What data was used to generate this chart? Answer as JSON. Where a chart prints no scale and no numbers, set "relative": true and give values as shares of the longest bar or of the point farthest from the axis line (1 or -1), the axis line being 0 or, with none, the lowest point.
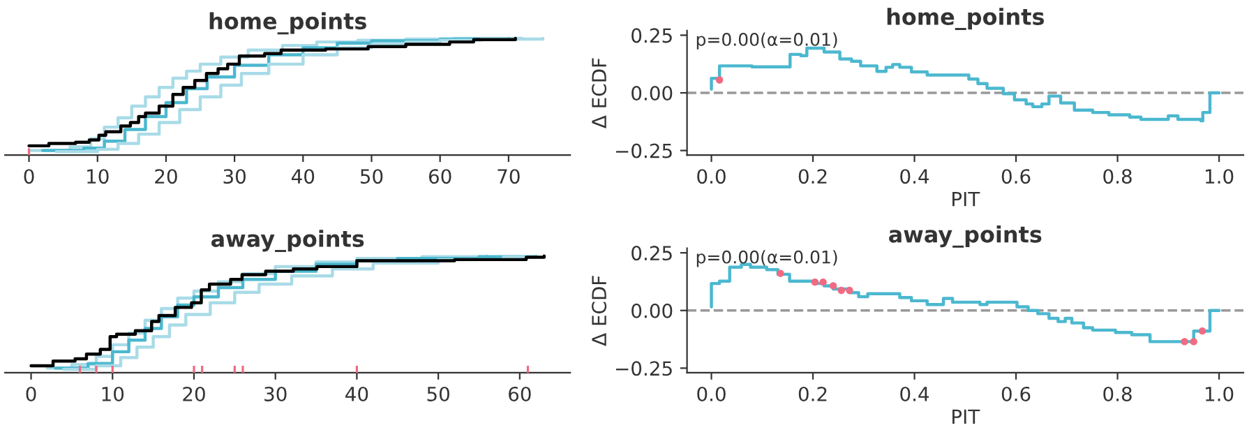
{
  "chart_data": [
    {
      "type": "step",
      "title": "home_points",
      "relative": true,
      "xlim": [
        -3.5,
        79
      ],
      "xticks": [
        0,
        10,
        20,
        30,
        40,
        50,
        60,
        70
      ],
      "tick_labels": "x",
      "series": [
        {
          "color": "#a8dbe7",
          "x": [
            0,
            6,
            9,
            11,
            13,
            15,
            17,
            19,
            21,
            23,
            25,
            28,
            32,
            37,
            42,
            48,
            55,
            62,
            72
          ],
          "values": [
            0.04,
            0.07,
            0.14,
            0.24,
            0.32,
            0.42,
            0.5,
            0.58,
            0.66,
            0.72,
            0.78,
            0.84,
            0.9,
            0.94,
            0.97,
            0.985,
            0.995,
            1.0,
            1.0
          ]
        },
        {
          "color": "#4bb8cf",
          "x": [
            2,
            8,
            11,
            14,
            17,
            20,
            23,
            26,
            30,
            35,
            40,
            45,
            50,
            60,
            70
          ],
          "values": [
            0.04,
            0.06,
            0.12,
            0.22,
            0.33,
            0.45,
            0.57,
            0.67,
            0.77,
            0.86,
            0.92,
            0.96,
            0.98,
            0.995,
            1.0
          ]
        },
        {
          "color": "#a8dbe7",
          "x": [
            4,
            10,
            13,
            16,
            19,
            22,
            25,
            28,
            31,
            35,
            40,
            45,
            50,
            55,
            60,
            66,
            75
          ],
          "values": [
            0.03,
            0.05,
            0.1,
            0.18,
            0.28,
            0.39,
            0.5,
            0.6,
            0.7,
            0.78,
            0.86,
            0.92,
            0.95,
            0.97,
            0.985,
            0.995,
            1.0
          ]
        },
        {
          "color": "#000000",
          "x": [
            0,
            2.9,
            6.8,
            8.8,
            10.2,
            11.2,
            13.4,
            14.8,
            16,
            17,
            19,
            21,
            22.5,
            24.2,
            25.9,
            27.6,
            29,
            30.7,
            34.4,
            36.8,
            43.3,
            49.5,
            55,
            61.4,
            64.9,
            71
          ],
          "values": [
            0.08,
            0.1,
            0.11,
            0.13,
            0.17,
            0.2,
            0.25,
            0.28,
            0.33,
            0.36,
            0.42,
            0.52,
            0.58,
            0.64,
            0.7,
            0.74,
            0.78,
            0.85,
            0.87,
            0.9,
            0.91,
            0.93,
            0.95,
            0.97,
            0.99,
            1.0
          ]
        },
        {
          "type": "bar",
          "color": "#f06b82",
          "x": [
            0
          ],
          "values": [
            0.06
          ]
        }
      ]
    },
    {
      "type": "step",
      "title": "home_points",
      "xlabel": "PIT",
      "ylabel": "Δ ECDF",
      "xlim": [
        -0.048,
        1.048
      ],
      "ylim": [
        -0.27,
        0.27
      ],
      "xticks": [
        {
          "value": 0,
          "label": "0.0"
        },
        {
          "value": 0.2,
          "label": "0.2"
        },
        {
          "value": 0.4,
          "label": "0.4"
        },
        {
          "value": 0.6,
          "label": "0.6"
        },
        {
          "value": 0.8,
          "label": "0.8"
        },
        {
          "value": 1,
          "label": "1.0"
        }
      ],
      "yticks": [
        {
          "value": -0.25,
          "label": "−0.25"
        },
        {
          "value": 0,
          "label": "0.00"
        },
        {
          "value": 0.25,
          "label": "0.25"
        }
      ],
      "ref_lines": [
        {
          "axis": "y",
          "value": 0,
          "color": "#999999",
          "line_style": "dashed"
        }
      ],
      "annotations": [
        "p=0.00(α=0.01)"
      ],
      "series": [
        {
          "color": "#4bb8cf",
          "x": [
            0,
            0,
            0.016,
            0.08,
            0.155,
            0.176,
            0.188,
            0.222,
            0.253,
            0.276,
            0.294,
            0.326,
            0.344,
            0.357,
            0.371,
            0.394,
            0.425,
            0.507,
            0.525,
            0.543,
            0.575,
            0.597,
            0.62,
            0.633,
            0.651,
            0.665,
            0.688,
            0.715,
            0.751,
            0.783,
            0.824,
            0.846,
            0.9,
            0.919,
            0.964,
            0.968,
            0.982,
            1.0
          ],
          "values": [
            0.016,
            0.063,
            0.117,
            0.113,
            0.167,
            0.161,
            0.194,
            0.177,
            0.147,
            0.137,
            0.117,
            0.093,
            0.111,
            0.123,
            0.111,
            0.091,
            0.077,
            0.06,
            0.04,
            0.02,
            -0.004,
            -0.03,
            -0.048,
            -0.06,
            -0.048,
            -0.014,
            -0.044,
            -0.075,
            -0.085,
            -0.095,
            -0.105,
            -0.115,
            -0.1,
            -0.115,
            -0.121,
            -0.085,
            0,
            0
          ]
        },
        {
          "type": "scatter",
          "marker": "circle",
          "color": "#f06b82",
          "x": [
            0.016
          ],
          "values": [
            0.056
          ]
        }
      ]
    },
    {
      "type": "step",
      "title": "away_points",
      "relative": true,
      "xlim": [
        -3.2,
        66.2
      ],
      "xticks": [
        0,
        10,
        20,
        30,
        40,
        50,
        60
      ],
      "tick_labels": "x",
      "series": [
        {
          "color": "#a8dbe7",
          "x": [
            2,
            5,
            8,
            10,
            12,
            14,
            16,
            18,
            20,
            23,
            26,
            30,
            35,
            40,
            48,
            56
          ],
          "values": [
            0.04,
            0.07,
            0.14,
            0.24,
            0.34,
            0.45,
            0.55,
            0.64,
            0.7,
            0.78,
            0.85,
            0.91,
            0.95,
            0.98,
            0.995,
            1.0
          ]
        },
        {
          "color": "#4bb8cf",
          "x": [
            3,
            7,
            10,
            12,
            14,
            16,
            18,
            20,
            23,
            26,
            30,
            35,
            40,
            45,
            55,
            62
          ],
          "values": [
            0.04,
            0.08,
            0.18,
            0.28,
            0.38,
            0.48,
            0.58,
            0.65,
            0.73,
            0.8,
            0.87,
            0.93,
            0.96,
            0.98,
            0.995,
            1.0
          ]
        },
        {
          "color": "#a8dbe7",
          "x": [
            4,
            8,
            11,
            13,
            15,
            17,
            19,
            22,
            25,
            28,
            32,
            37,
            42,
            50,
            58,
            62
          ],
          "values": [
            0.03,
            0.06,
            0.13,
            0.22,
            0.31,
            0.41,
            0.5,
            0.6,
            0.69,
            0.76,
            0.83,
            0.89,
            0.94,
            0.97,
            0.99,
            1.0
          ]
        },
        {
          "color": "#000000",
          "x": [
            0,
            2.7,
            5.4,
            6.8,
            8.5,
            9.7,
            10.5,
            12.8,
            14.8,
            15.7,
            17.7,
            19.7,
            20.9,
            21.9,
            24.5,
            25.9,
            28.8,
            32.2,
            35.1,
            40,
            52,
            60.8,
            63
          ],
          "values": [
            0.06,
            0.1,
            0.12,
            0.16,
            0.2,
            0.31,
            0.33,
            0.36,
            0.44,
            0.49,
            0.56,
            0.6,
            0.71,
            0.76,
            0.8,
            0.84,
            0.87,
            0.89,
            0.91,
            0.96,
            0.97,
            0.99,
            1.0
          ]
        },
        {
          "type": "bar",
          "color": "#f06b82",
          "x": [
            6,
            8,
            10,
            20,
            21,
            25,
            26,
            40,
            61
          ],
          "values": [
            0.06,
            0.06,
            0.06,
            0.06,
            0.06,
            0.06,
            0.06,
            0.06,
            0.06
          ]
        }
      ]
    },
    {
      "type": "step",
      "title": "away_points",
      "xlabel": "PIT",
      "ylabel": "Δ ECDF",
      "xlim": [
        -0.048,
        1.048
      ],
      "ylim": [
        -0.27,
        0.27
      ],
      "xticks": [
        {
          "value": 0,
          "label": "0.0"
        },
        {
          "value": 0.2,
          "label": "0.2"
        },
        {
          "value": 0.4,
          "label": "0.4"
        },
        {
          "value": 0.6,
          "label": "0.6"
        },
        {
          "value": 0.8,
          "label": "0.8"
        },
        {
          "value": 1,
          "label": "1.0"
        }
      ],
      "yticks": [
        {
          "value": -0.25,
          "label": "−0.25"
        },
        {
          "value": 0,
          "label": "0.00"
        },
        {
          "value": 0.25,
          "label": "0.25"
        }
      ],
      "ref_lines": [
        {
          "axis": "y",
          "value": 0,
          "color": "#999999",
          "line_style": "dashed"
        }
      ],
      "annotations": [
        "p=0.00(α=0.01)"
      ],
      "series": [
        {
          "color": "#4bb8cf",
          "x": [
            0,
            0,
            0.016,
            0.036,
            0.059,
            0.077,
            0.109,
            0.131,
            0.154,
            0.208,
            0.222,
            0.24,
            0.272,
            0.29,
            0.308,
            0.371,
            0.394,
            0.425,
            0.457,
            0.475,
            0.529,
            0.543,
            0.602,
            0.624,
            0.643,
            0.665,
            0.683,
            0.697,
            0.71,
            0.733,
            0.751,
            0.796,
            0.828,
            0.864,
            0.95,
            0.982,
            1.0
          ],
          "values": [
            0.016,
            0.117,
            0.127,
            0.188,
            0.2,
            0.188,
            0.177,
            0.157,
            0.127,
            0.117,
            0.107,
            0.093,
            0.077,
            0.06,
            0.073,
            0.056,
            0.042,
            0.026,
            0.052,
            0.036,
            0.026,
            0.036,
            0.016,
            0,
            -0.014,
            -0.034,
            -0.048,
            -0.034,
            -0.054,
            -0.075,
            -0.085,
            -0.095,
            -0.105,
            -0.135,
            -0.089,
            0,
            0
          ]
        },
        {
          "type": "scatter",
          "marker": "circle",
          "color": "#f06b82",
          "x": [
            0.136,
            0.204,
            0.22,
            0.24,
            0.256,
            0.272,
            0.932,
            0.95,
            0.967
          ],
          "values": [
            0.161,
            0.123,
            0.123,
            0.107,
            0.087,
            0.087,
            -0.135,
            -0.135,
            -0.089
          ]
        }
      ]
    }
  ]
}
